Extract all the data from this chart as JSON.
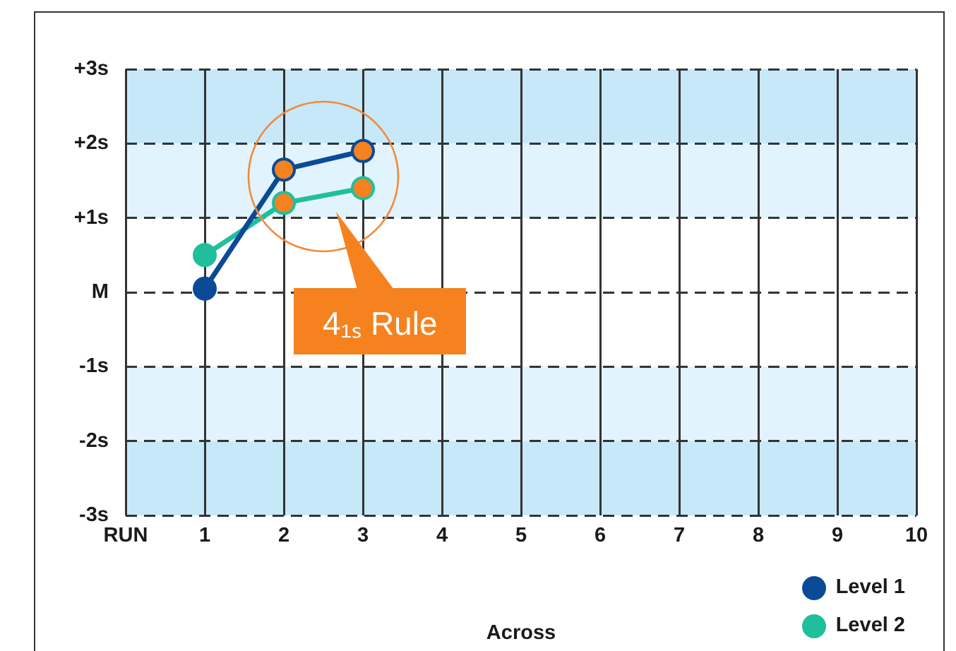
{
  "chart_data": {
    "type": "line",
    "x": [
      1,
      2,
      3
    ],
    "series": [
      {
        "name": "Level 1",
        "color": "#0b4a96",
        "colors": [
          "#0b4a96",
          "#f5821f",
          "#f5821f"
        ],
        "values": [
          0.05,
          1.65,
          1.9
        ]
      },
      {
        "name": "Level 2",
        "color": "#1fbf9c",
        "colors": [
          "#1fbf9c",
          "#f5821f",
          "#f5821f"
        ],
        "values": [
          0.5,
          1.2,
          1.4
        ]
      }
    ],
    "xlabel": "Across",
    "xlim": [
      0,
      10
    ],
    "xticks": [
      {
        "value": 0,
        "label": "RUN"
      },
      1,
      2,
      3,
      4,
      5,
      6,
      7,
      8,
      9,
      10
    ],
    "ylim": [
      -3,
      3
    ],
    "yticks": [
      {
        "value": -3,
        "label": "-3s"
      },
      {
        "value": -2,
        "label": "-2s"
      },
      {
        "value": -1,
        "label": "-1s"
      },
      {
        "value": 0,
        "label": "M"
      },
      {
        "value": 1,
        "label": "+1s"
      },
      {
        "value": 2,
        "label": "+2s"
      },
      {
        "value": 3,
        "label": "+3s"
      }
    ],
    "bands": [
      {
        "axis": "y",
        "from": 2,
        "to": 3,
        "color": "#c7e8f8"
      },
      {
        "axis": "y",
        "from": 1,
        "to": 2,
        "color": "#e1f3fc"
      },
      {
        "axis": "y",
        "from": -2,
        "to": -1,
        "color": "#e1f3fc"
      },
      {
        "axis": "y",
        "from": -3,
        "to": -2,
        "color": "#c7e8f8"
      }
    ],
    "annotations": [
      "4₁ₛ Rule"
    ],
    "grid": true,
    "legend": "bottom right",
    "marker": "circle"
  }
}
